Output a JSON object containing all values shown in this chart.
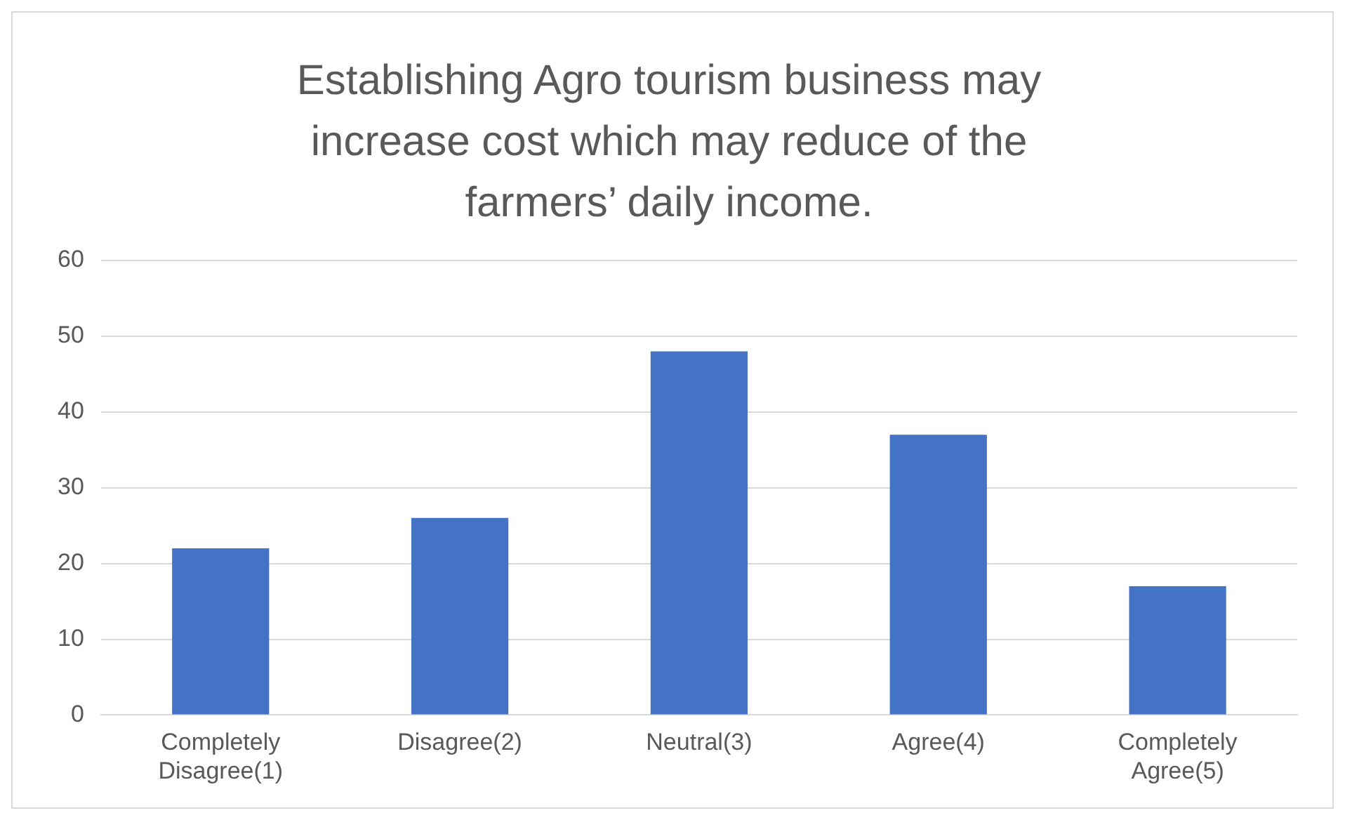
{
  "chart_data": {
    "type": "bar",
    "title": "Establishing Agro tourism business may increase cost which may reduce of the farmers’ daily income.",
    "categories": [
      "Completely Disagree(1)",
      "Disagree(2)",
      "Neutral(3)",
      "Agree(4)",
      "Completely Agree(5)"
    ],
    "values": [
      22,
      26,
      48,
      37,
      17
    ],
    "color": "#4472c4",
    "ylim": [
      0,
      60
    ],
    "yticks": [
      0,
      10,
      20,
      30,
      40,
      50,
      60
    ],
    "grid": "y",
    "legend": false
  }
}
